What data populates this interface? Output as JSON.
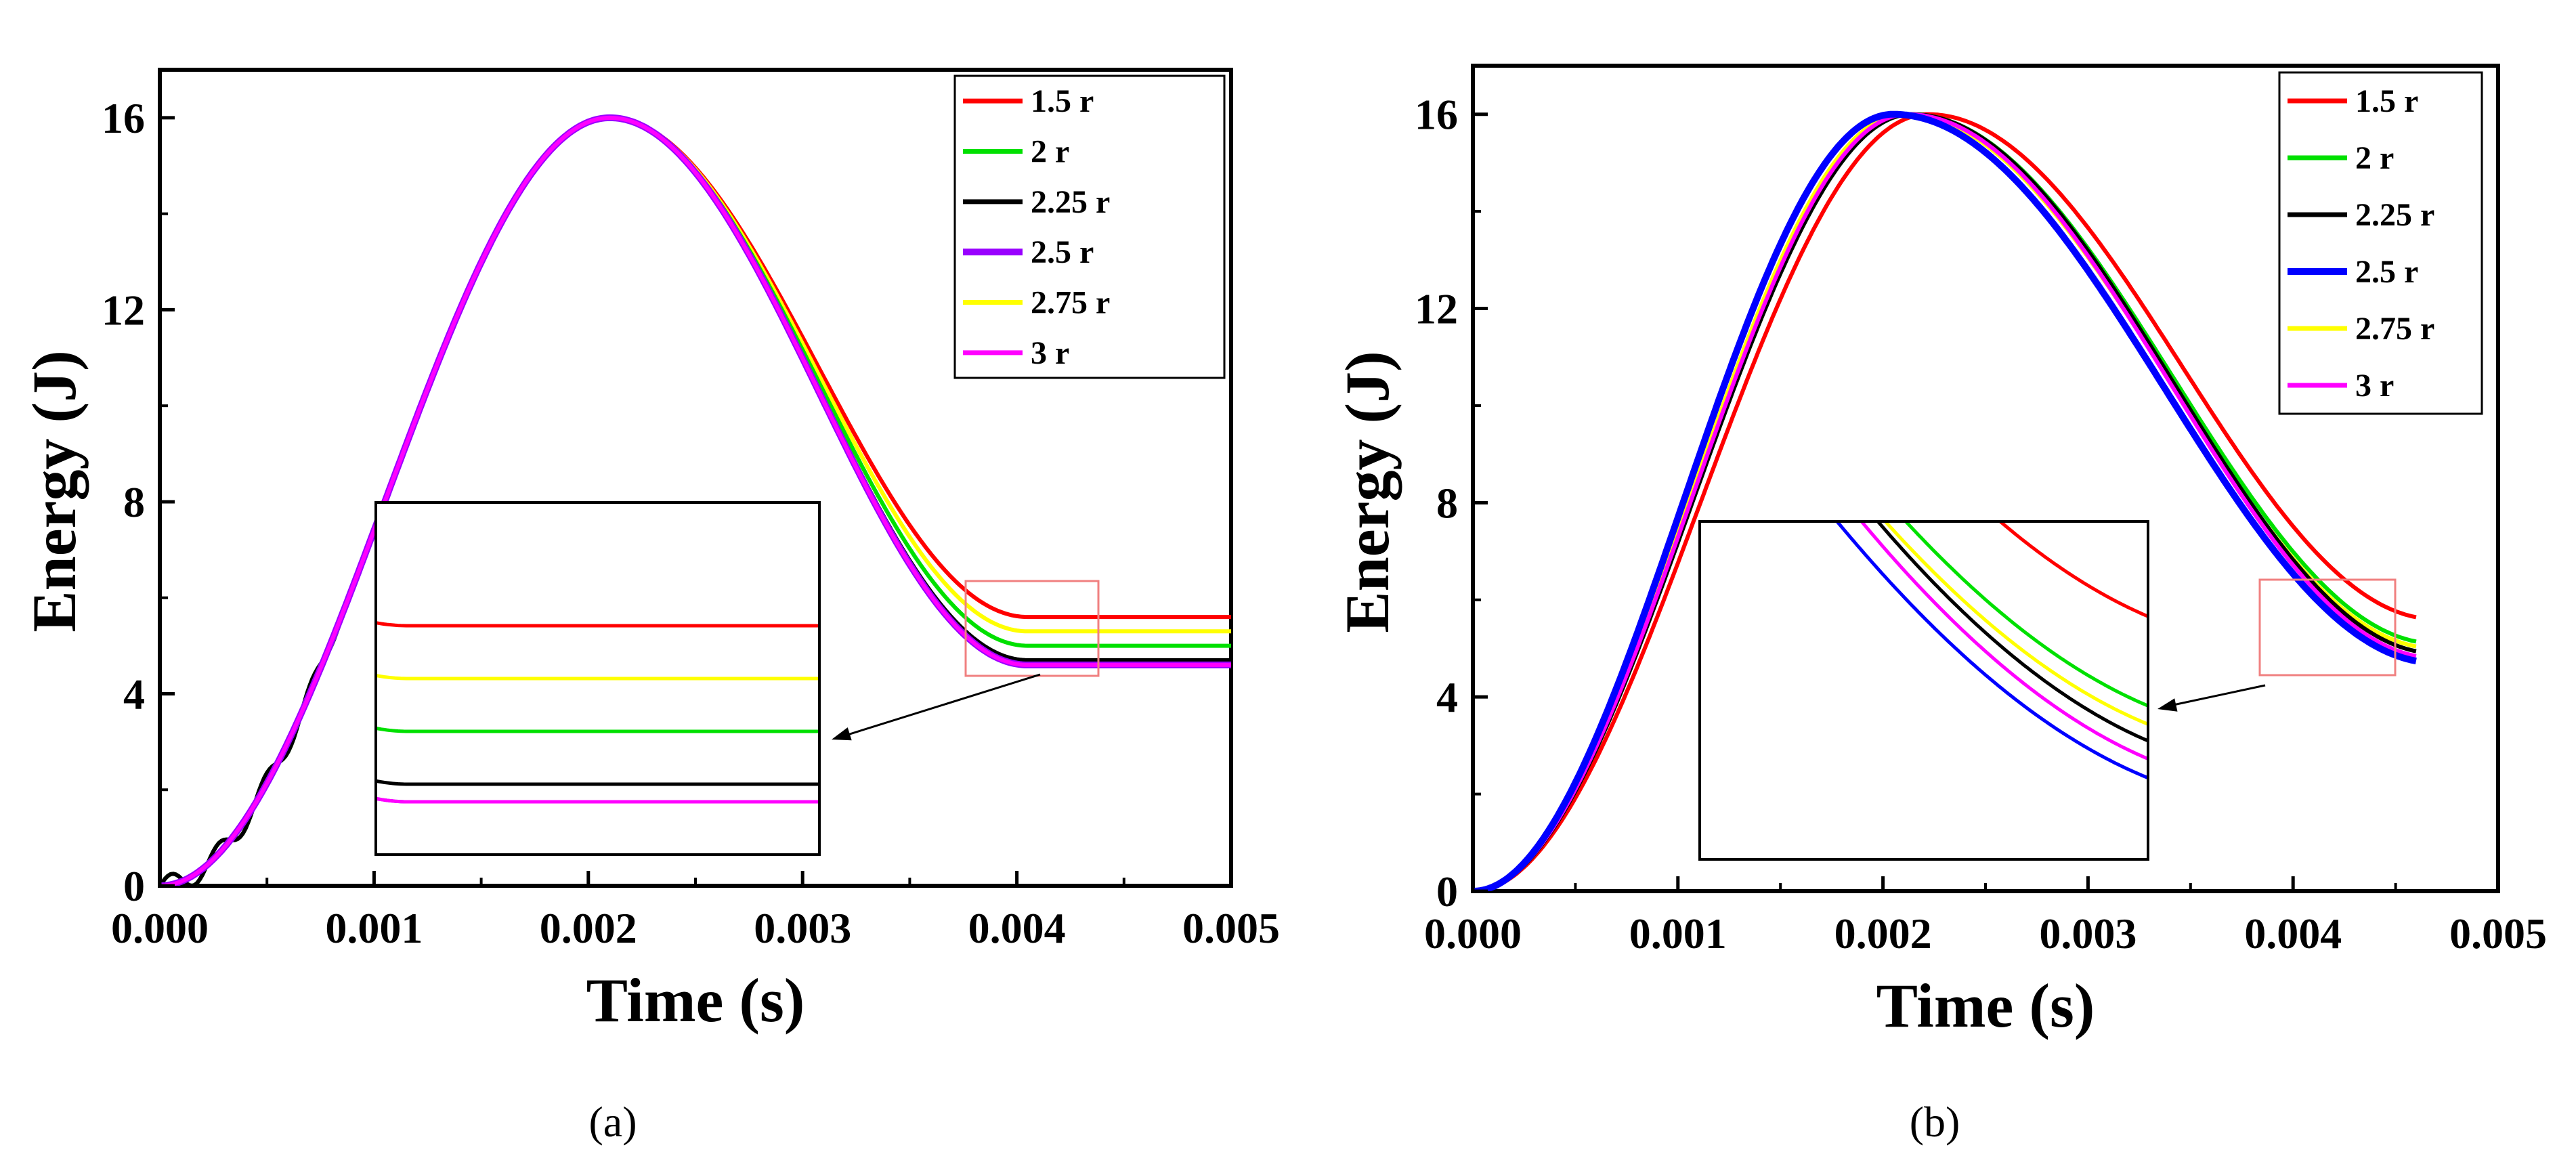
{
  "chart_data": [
    {
      "type": "line",
      "caption": "(a)",
      "xlabel": "Time (s)",
      "ylabel": "Energy (J)",
      "xlim": [
        0,
        0.005
      ],
      "ylim": [
        0,
        17
      ],
      "xticks": [
        0.0,
        0.001,
        0.002,
        0.003,
        0.004,
        0.005
      ],
      "xtick_labels": [
        "0.000",
        "0.001",
        "0.002",
        "0.003",
        "0.004",
        "0.005"
      ],
      "yticks": [
        0,
        4,
        8,
        12,
        16
      ],
      "ytick_labels": [
        "0",
        "4",
        "8",
        "12",
        "16"
      ],
      "legend_position": "top-right",
      "peak": {
        "x": 0.0021,
        "y": 16.0
      },
      "inset": {
        "zoom_xlim": [
          0.004,
          0.00468
        ],
        "zoom_ylim": [
          4.3,
          6.3
        ],
        "position": "lower-middle"
      },
      "series": [
        {
          "name": "1.5 r",
          "color": "#ff0000",
          "final": 5.6
        },
        {
          "name": "2 r",
          "color": "#00e000",
          "final": 5.0
        },
        {
          "name": "2.25 r",
          "color": "#000000",
          "final": 4.7
        },
        {
          "name": "2.5 r",
          "color": "#9900ff",
          "final": 4.6
        },
        {
          "name": "2.75 r",
          "color": "#ffff00",
          "final": 5.3
        },
        {
          "name": "3 r",
          "color": "#ff00ff",
          "final": 4.6
        }
      ]
    },
    {
      "type": "line",
      "caption": "(b)",
      "xlabel": "Time (s)",
      "ylabel": "Energy (J)",
      "xlim": [
        0,
        0.005
      ],
      "ylim": [
        0,
        17
      ],
      "xticks": [
        0.0,
        0.001,
        0.002,
        0.003,
        0.004,
        0.005
      ],
      "xtick_labels": [
        "0.000",
        "0.001",
        "0.002",
        "0.003",
        "0.004",
        "0.005"
      ],
      "yticks": [
        0,
        4,
        8,
        12,
        16
      ],
      "ytick_labels": [
        "0",
        "4",
        "8",
        "12",
        "16"
      ],
      "legend_position": "top-right",
      "end_x": 0.0046,
      "inset": {
        "zoom_xlim": [
          0.00385,
          0.0045
        ],
        "zoom_ylim": [
          4.4,
          6.3
        ],
        "position": "lower-middle"
      },
      "series": [
        {
          "name": "1.5 r",
          "color": "#ff0000",
          "peak_x": 0.00222,
          "final": 5.6
        },
        {
          "name": "2 r",
          "color": "#00e000",
          "peak_x": 0.00214,
          "final": 5.1
        },
        {
          "name": "2.25 r",
          "color": "#000000",
          "peak_x": 0.00214,
          "final": 4.9
        },
        {
          "name": "2.5 r",
          "color": "#0000ff",
          "peak_x": 0.00205,
          "final": 4.7
        },
        {
          "name": "2.75 r",
          "color": "#ffff00",
          "peak_x": 0.0021,
          "final": 5.0
        },
        {
          "name": "3 r",
          "color": "#ff00ff",
          "peak_x": 0.00212,
          "final": 4.8
        }
      ]
    }
  ]
}
